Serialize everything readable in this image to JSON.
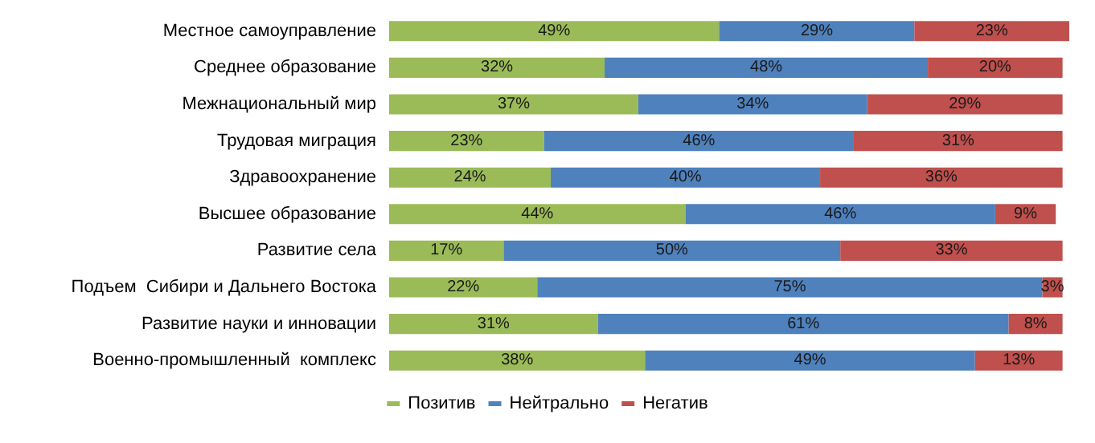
{
  "chart_data": {
    "type": "bar",
    "orientation": "horizontal",
    "stacked": true,
    "legend": "bottom",
    "categories": [
      "Местное самоуправление",
      "Среднее образование",
      "Межнациональный мир",
      "Трудовая миграция",
      "Здравоохранение",
      "Высшее образование",
      "Развитие села",
      "Подъем  Сибири и Дальнего Востока",
      "Развитие науки и инновации",
      "Военно-промышленный  комплекс"
    ],
    "series": [
      {
        "name": "Позитив",
        "color": "#9bbb59",
        "values": [
          49,
          32,
          37,
          23,
          24,
          44,
          17,
          22,
          31,
          38
        ],
        "value_labels": [
          "49%",
          "32%",
          "37%",
          "23%",
          "24%",
          "44%",
          "17%",
          "22%",
          "31%",
          "38%"
        ]
      },
      {
        "name": "Нейтрально",
        "color": "#4f81bd",
        "values": [
          29,
          48,
          34,
          46,
          40,
          46,
          50,
          75,
          61,
          49
        ],
        "value_labels": [
          "29%",
          "48%",
          "34%",
          "46%",
          "40%",
          "46%",
          "50%",
          "75%",
          "61%",
          "49%"
        ]
      },
      {
        "name": "Негатив",
        "color": "#c0504d",
        "values": [
          23,
          20,
          29,
          31,
          36,
          9,
          33,
          3,
          8,
          13
        ],
        "value_labels": [
          "23%",
          "20%",
          "29%",
          "31%",
          "36%",
          "9%",
          "33%",
          "3%",
          "8%",
          "13%"
        ]
      }
    ]
  }
}
